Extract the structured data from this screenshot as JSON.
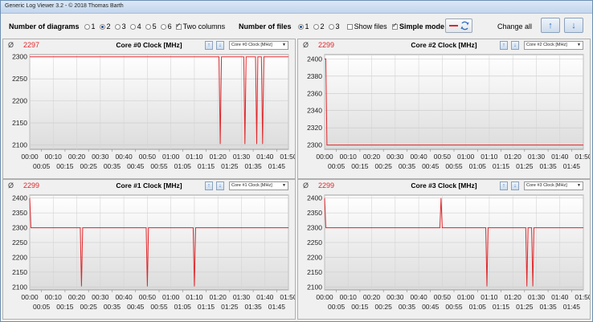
{
  "window": {
    "title": "Generic Log Viewer 3.2 - © 2018 Thomas Barth"
  },
  "toolbar": {
    "num_diagrams_label": "Number of diagrams",
    "diagram_options": [
      "1",
      "2",
      "3",
      "4",
      "5",
      "6"
    ],
    "diagram_selected": "2",
    "two_columns_label": "Two columns",
    "two_columns_checked": true,
    "num_files_label": "Number of files",
    "file_options": [
      "1",
      "2",
      "3"
    ],
    "file_selected": "1",
    "show_files_label": "Show files",
    "show_files_checked": false,
    "simple_mode_label": "Simple mode",
    "simple_mode_checked": true,
    "change_all_label": "Change all",
    "up_icon": "arrow-up-icon",
    "down_icon": "arrow-down-icon"
  },
  "panels": [
    {
      "id": "core0",
      "phi": "Ø",
      "value": "2297",
      "title": "Core #0 Clock [MHz]",
      "dropdown": "Core #0 Clock [MHz]"
    },
    {
      "id": "core2",
      "phi": "Ø",
      "value": "2299",
      "title": "Core #2 Clock [MHz]",
      "dropdown": "Core #2 Clock [MHz]"
    },
    {
      "id": "core1",
      "phi": "Ø",
      "value": "2299",
      "title": "Core #1 Clock [MHz]",
      "dropdown": "Core #1 Clock [MHz]"
    },
    {
      "id": "core3",
      "phi": "Ø",
      "value": "2299",
      "title": "Core #3 Clock [MHz]",
      "dropdown": "Core #3 Clock [MHz]"
    }
  ],
  "colors": {
    "series": "#e0262a",
    "accent": "#2f6fc1"
  },
  "chart_data": [
    {
      "type": "line",
      "title": "Core #0 Clock [MHz]",
      "xlabel": "",
      "ylabel": "",
      "xlim": [
        0,
        110
      ],
      "ylim": [
        2090,
        2305
      ],
      "yticks": [
        2100,
        2150,
        2200,
        2250,
        2300
      ],
      "xticks_top": [
        "00:00",
        "00:10",
        "00:20",
        "00:30",
        "00:40",
        "00:50",
        "01:00",
        "01:10",
        "01:20",
        "01:30",
        "01:40",
        "01:50"
      ],
      "xticks_bottom": [
        "00:05",
        "00:15",
        "00:25",
        "00:35",
        "00:45",
        "00:55",
        "01:05",
        "01:15",
        "01:25",
        "01:35",
        "01:45"
      ],
      "grid": true,
      "series": [
        {
          "x": [
            0,
            80.5,
            81,
            81.5,
            91,
            91.5,
            92,
            96,
            96.5,
            97,
            98.5,
            99,
            99.5,
            110
          ],
          "y": [
            2300,
            2300,
            2102,
            2300,
            2300,
            2102,
            2300,
            2300,
            2102,
            2300,
            2300,
            2102,
            2300,
            2300
          ]
        }
      ]
    },
    {
      "type": "line",
      "title": "Core #2 Clock [MHz]",
      "xlabel": "",
      "ylabel": "",
      "xlim": [
        0,
        110
      ],
      "ylim": [
        2295,
        2405
      ],
      "yticks": [
        2300,
        2320,
        2340,
        2360,
        2380,
        2400
      ],
      "xticks_top": [
        "00:00",
        "00:10",
        "00:20",
        "00:30",
        "00:40",
        "00:50",
        "01:00",
        "01:10",
        "01:20",
        "01:30",
        "01:40",
        "01:50"
      ],
      "xticks_bottom": [
        "00:05",
        "00:15",
        "00:25",
        "00:35",
        "00:45",
        "00:55",
        "01:05",
        "01:15",
        "01:25",
        "01:35",
        "01:45"
      ],
      "grid": true,
      "series": [
        {
          "x": [
            0,
            0.5,
            1,
            110
          ],
          "y": [
            2400,
            2400,
            2300,
            2300
          ]
        }
      ]
    },
    {
      "type": "line",
      "title": "Core #1 Clock [MHz]",
      "xlabel": "",
      "ylabel": "",
      "xlim": [
        0,
        110
      ],
      "ylim": [
        2090,
        2410
      ],
      "yticks": [
        2100,
        2150,
        2200,
        2250,
        2300,
        2350,
        2400
      ],
      "xticks_top": [
        "00:00",
        "00:10",
        "00:20",
        "00:30",
        "00:40",
        "00:50",
        "01:00",
        "01:10",
        "01:20",
        "01:30",
        "01:40",
        "01:50"
      ],
      "xticks_bottom": [
        "00:05",
        "00:15",
        "00:25",
        "00:35",
        "00:45",
        "00:55",
        "01:05",
        "01:15",
        "01:25",
        "01:35",
        "01:45"
      ],
      "grid": true,
      "series": [
        {
          "x": [
            0,
            0.5,
            1,
            21.5,
            22,
            22.5,
            49.5,
            50,
            50.5,
            69.5,
            70,
            70.5,
            110
          ],
          "y": [
            2400,
            2300,
            2300,
            2300,
            2102,
            2300,
            2300,
            2102,
            2300,
            2300,
            2102,
            2300,
            2300
          ]
        }
      ]
    },
    {
      "type": "line",
      "title": "Core #3 Clock [MHz]",
      "xlabel": "",
      "ylabel": "",
      "xlim": [
        0,
        110
      ],
      "ylim": [
        2090,
        2410
      ],
      "yticks": [
        2100,
        2150,
        2200,
        2250,
        2300,
        2350,
        2400
      ],
      "xticks_top": [
        "00:00",
        "00:10",
        "00:20",
        "00:30",
        "00:40",
        "00:50",
        "01:00",
        "01:10",
        "01:20",
        "01:30",
        "01:40",
        "01:50"
      ],
      "xticks_bottom": [
        "00:05",
        "00:15",
        "00:25",
        "00:35",
        "00:45",
        "00:55",
        "01:05",
        "01:15",
        "01:25",
        "01:35",
        "01:45"
      ],
      "grid": true,
      "series": [
        {
          "x": [
            0,
            0.5,
            1,
            49,
            49.5,
            50,
            68.5,
            69,
            69.5,
            85.5,
            86,
            86.5,
            88,
            88.5,
            89,
            110
          ],
          "y": [
            2400,
            2300,
            2300,
            2300,
            2400,
            2300,
            2300,
            2102,
            2300,
            2300,
            2102,
            2300,
            2300,
            2102,
            2300,
            2300
          ]
        }
      ]
    }
  ]
}
